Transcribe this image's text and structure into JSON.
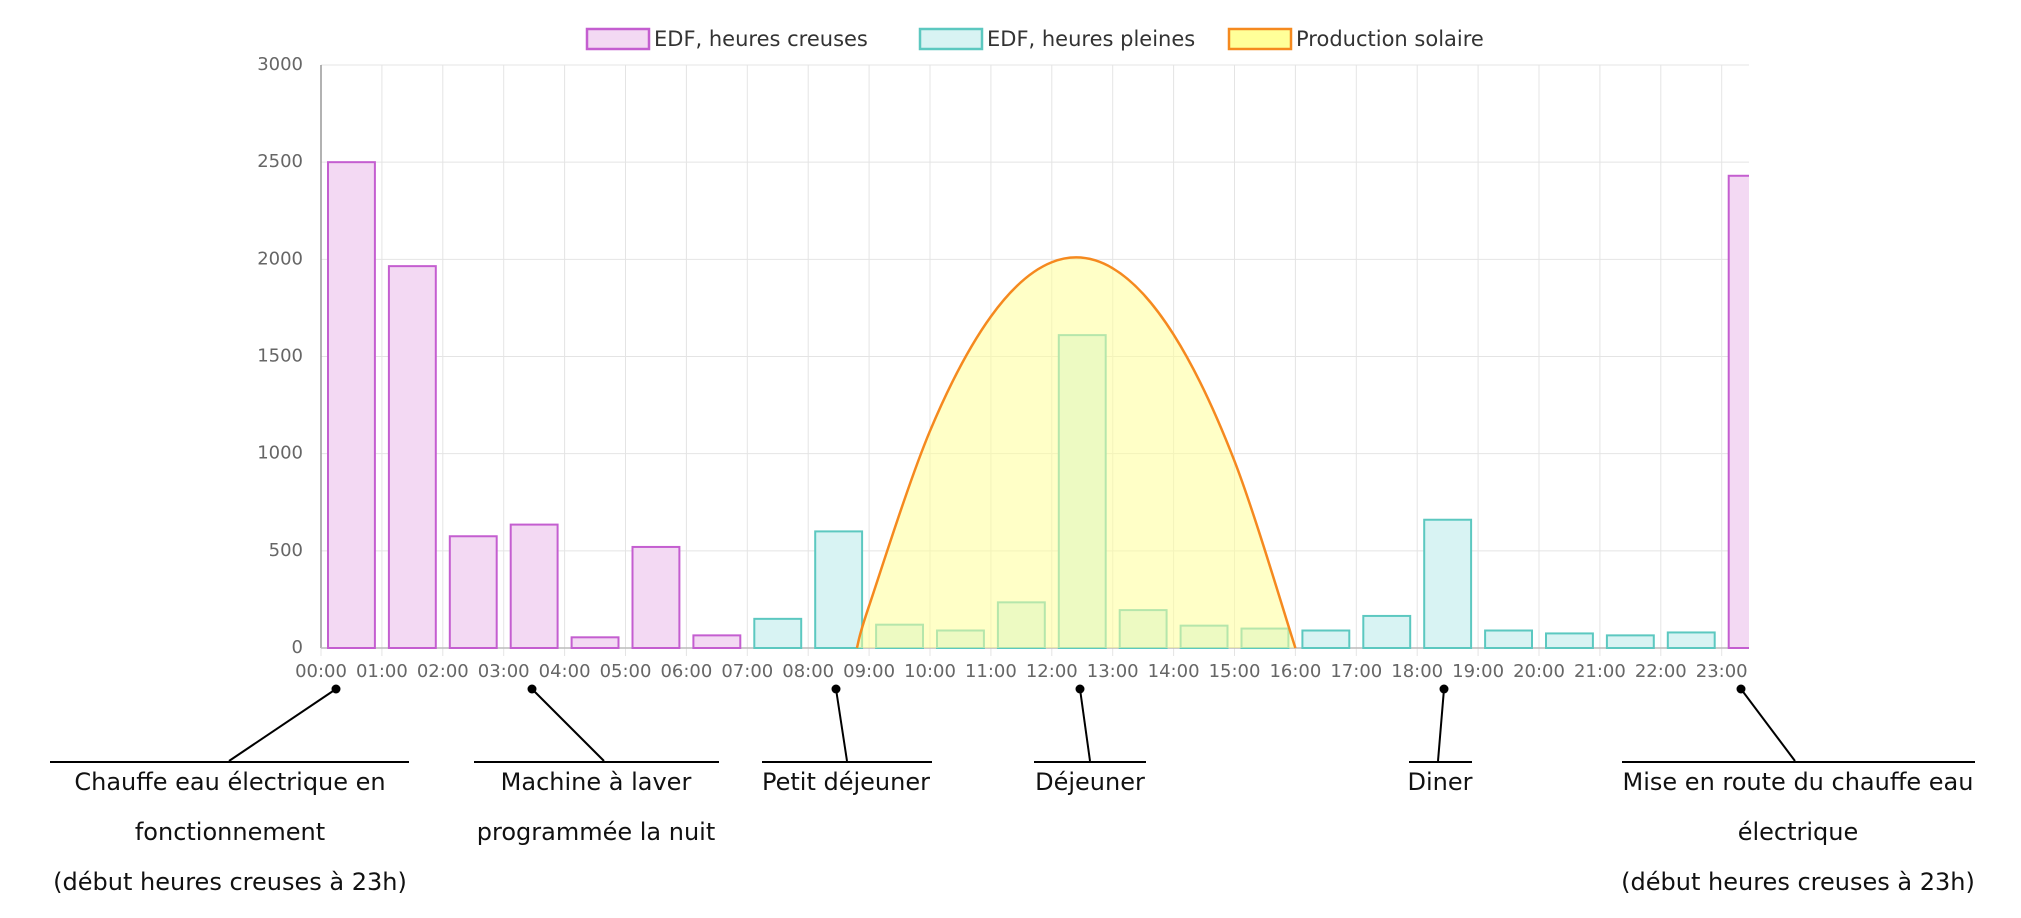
{
  "chart_data": {
    "type": "bar",
    "categories": [
      "00:00",
      "01:00",
      "02:00",
      "03:00",
      "04:00",
      "05:00",
      "06:00",
      "07:00",
      "08:00",
      "09:00",
      "10:00",
      "11:00",
      "12:00",
      "13:00",
      "14:00",
      "15:00",
      "16:00",
      "17:00",
      "18:00",
      "19:00",
      "20:00",
      "21:00",
      "22:00",
      "23:00"
    ],
    "series": [
      {
        "name": "EDF, heures creuses",
        "color": "#c45ed0",
        "fill": "#f3d9f3",
        "values": [
          2500,
          1965,
          575,
          635,
          55,
          520,
          65,
          0,
          0,
          0,
          0,
          0,
          0,
          0,
          0,
          0,
          0,
          0,
          0,
          0,
          0,
          0,
          0,
          2430
        ]
      },
      {
        "name": "EDF, heures pleines",
        "color": "#5cc8c0",
        "fill": "#d8f3f3",
        "values": [
          0,
          0,
          0,
          0,
          0,
          0,
          0,
          150,
          600,
          120,
          90,
          235,
          1610,
          195,
          115,
          100,
          90,
          165,
          660,
          90,
          75,
          65,
          80,
          0
        ]
      }
    ],
    "solar": {
      "name": "Production solaire",
      "color": "#f5891f",
      "fill": "#ffff99",
      "x": [
        8.8,
        9,
        10,
        11,
        12,
        13,
        14,
        15,
        16
      ],
      "values": [
        0,
        217,
        1117,
        1706,
        1985,
        1954,
        1613,
        962,
        0
      ]
    },
    "ylim": [
      0,
      3000
    ],
    "yticks": [
      0,
      500,
      1000,
      1500,
      2000,
      2500,
      3000
    ],
    "grid": true,
    "annotations": [
      {
        "category": 0,
        "lines": [
          "Chauffe eau électrique en",
          "fonctionnement",
          "(début heures creuses à 23h)"
        ]
      },
      {
        "category": 3,
        "lines": [
          "Machine à laver",
          "programmée la nuit"
        ]
      },
      {
        "category": 8,
        "lines": [
          "Petit déjeuner"
        ]
      },
      {
        "category": 12,
        "lines": [
          "Déjeuner"
        ]
      },
      {
        "category": 18,
        "lines": [
          "Diner"
        ]
      },
      {
        "category": 23,
        "lines": [
          "Mise en route du chauffe eau",
          "électrique",
          "(début heures creuses à 23h)"
        ]
      }
    ]
  }
}
